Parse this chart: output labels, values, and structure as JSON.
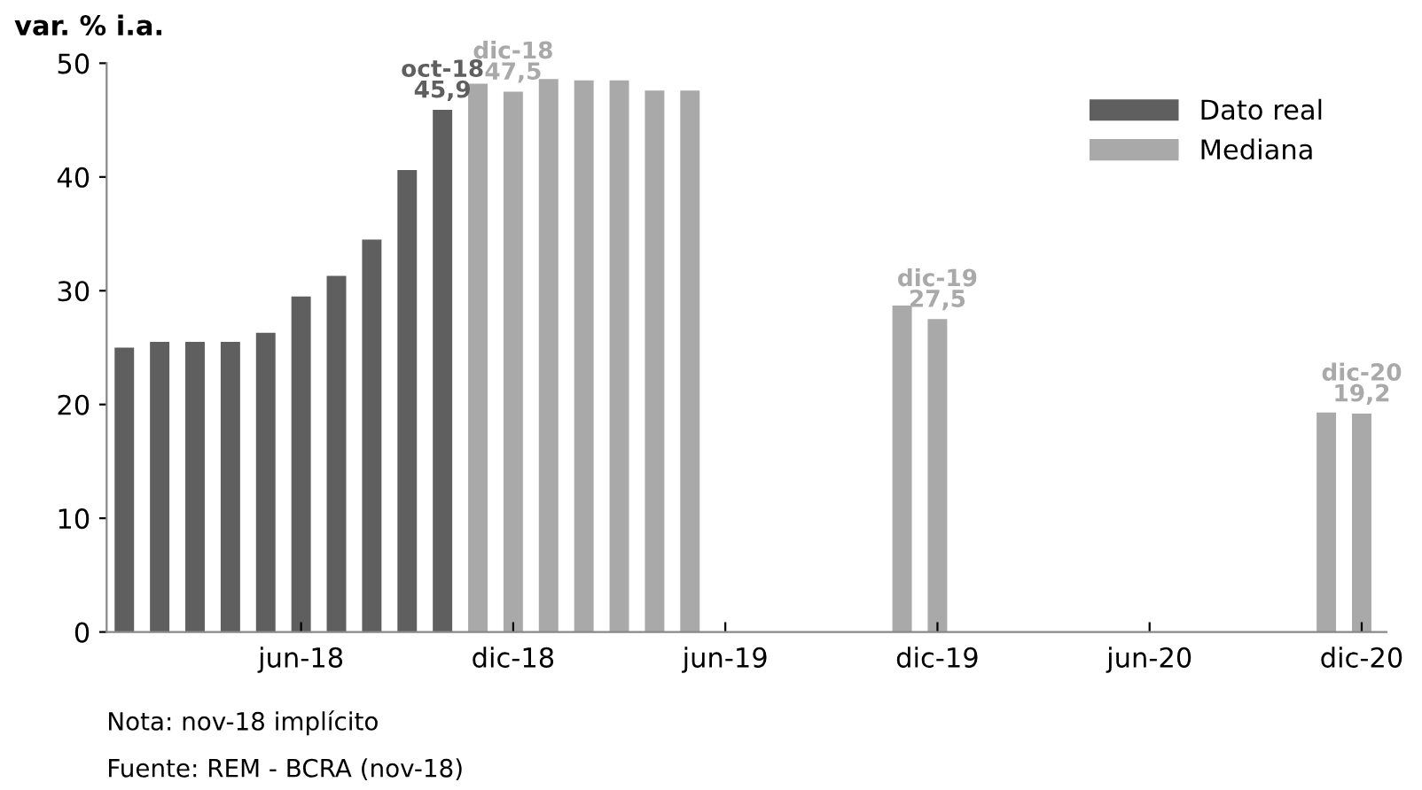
{
  "chart_data": {
    "type": "bar",
    "ylabel": "var. % i.a.",
    "categories": [
      null,
      null,
      null,
      null,
      null,
      "jun-18",
      null,
      null,
      null,
      null,
      null,
      "dic-18",
      null,
      null,
      null,
      null,
      null,
      "jun-19",
      null,
      null,
      null,
      null,
      null,
      "dic-19",
      null,
      null,
      null,
      null,
      null,
      "jun-20",
      null,
      null,
      null,
      null,
      null,
      "dic-20"
    ],
    "series": [
      {
        "name": "Dato real",
        "color": "#5f5f5f",
        "values": [
          25.0,
          25.5,
          25.5,
          25.5,
          26.3,
          29.5,
          31.3,
          34.5,
          40.6,
          45.9,
          null,
          null,
          null,
          null,
          null,
          null,
          null,
          null,
          null,
          null,
          null,
          null,
          null,
          null,
          null,
          null,
          null,
          null,
          null,
          null,
          null,
          null,
          null,
          null,
          null,
          null
        ],
        "value_labels": [
          null,
          null,
          null,
          null,
          null,
          null,
          null,
          null,
          null,
          "oct-18\n45,9",
          null,
          null,
          null,
          null,
          null,
          null,
          null,
          null,
          null,
          null,
          null,
          null,
          null,
          null,
          null,
          null,
          null,
          null,
          null,
          null,
          null,
          null,
          null,
          null,
          null,
          null
        ]
      },
      {
        "name": "Mediana",
        "color": "#a9a9a9",
        "values": [
          null,
          null,
          null,
          null,
          null,
          null,
          null,
          null,
          null,
          null,
          48.2,
          47.5,
          48.6,
          48.5,
          48.5,
          47.6,
          47.6,
          null,
          null,
          null,
          null,
          null,
          28.7,
          27.5,
          null,
          null,
          null,
          null,
          null,
          null,
          null,
          null,
          null,
          null,
          19.3,
          19.2
        ],
        "value_labels": [
          null,
          null,
          null,
          null,
          null,
          null,
          null,
          null,
          null,
          null,
          null,
          "dic-18\n47,5",
          null,
          null,
          null,
          null,
          null,
          null,
          null,
          null,
          null,
          null,
          null,
          "dic-19\n27,5",
          null,
          null,
          null,
          null,
          null,
          null,
          null,
          null,
          null,
          null,
          null,
          "dic-20\n19,2"
        ]
      }
    ],
    "ylim": [
      0,
      50
    ],
    "yticks": [
      0,
      10,
      20,
      30,
      40,
      50
    ],
    "grid": false,
    "legend": "top right",
    "annotations": [
      "Nota: nov-18 implícito",
      "Fuente: REM - BCRA (nov-18)"
    ]
  }
}
